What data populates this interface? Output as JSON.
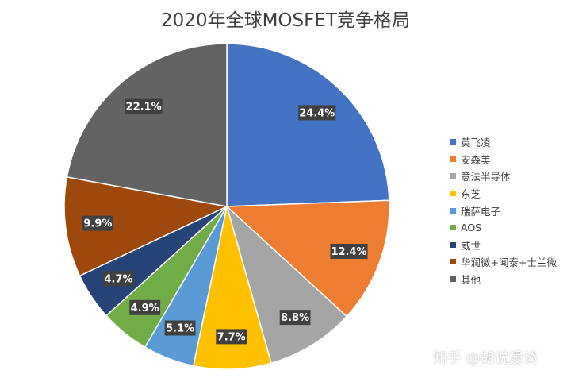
{
  "chart_data": {
    "type": "pie",
    "title": "2020年全球MOSFET竞争格局",
    "categories": [
      "英飞凌",
      "安森美",
      "意法半导体",
      "东芝",
      "瑞萨电子",
      "AOS",
      "威世",
      "华润微+闻泰+士兰微",
      "其他"
    ],
    "values": [
      24.4,
      12.4,
      8.8,
      7.7,
      5.1,
      4.9,
      4.7,
      9.9,
      22.1
    ],
    "value_labels": [
      "24.4%",
      "12.4%",
      "8.8%",
      "7.7%",
      "5.1%",
      "4.9%",
      "4.7%",
      "9.9%",
      "22.1%"
    ],
    "colors": [
      "#4472C4",
      "#ED7D31",
      "#A5A5A5",
      "#FFC000",
      "#5B9BD5",
      "#70AD47",
      "#264478",
      "#9E480E",
      "#636363"
    ],
    "legend_position": "right",
    "start_angle_deg": 0,
    "direction": "clockwise"
  },
  "watermark": "知乎 @胡说漫谈"
}
